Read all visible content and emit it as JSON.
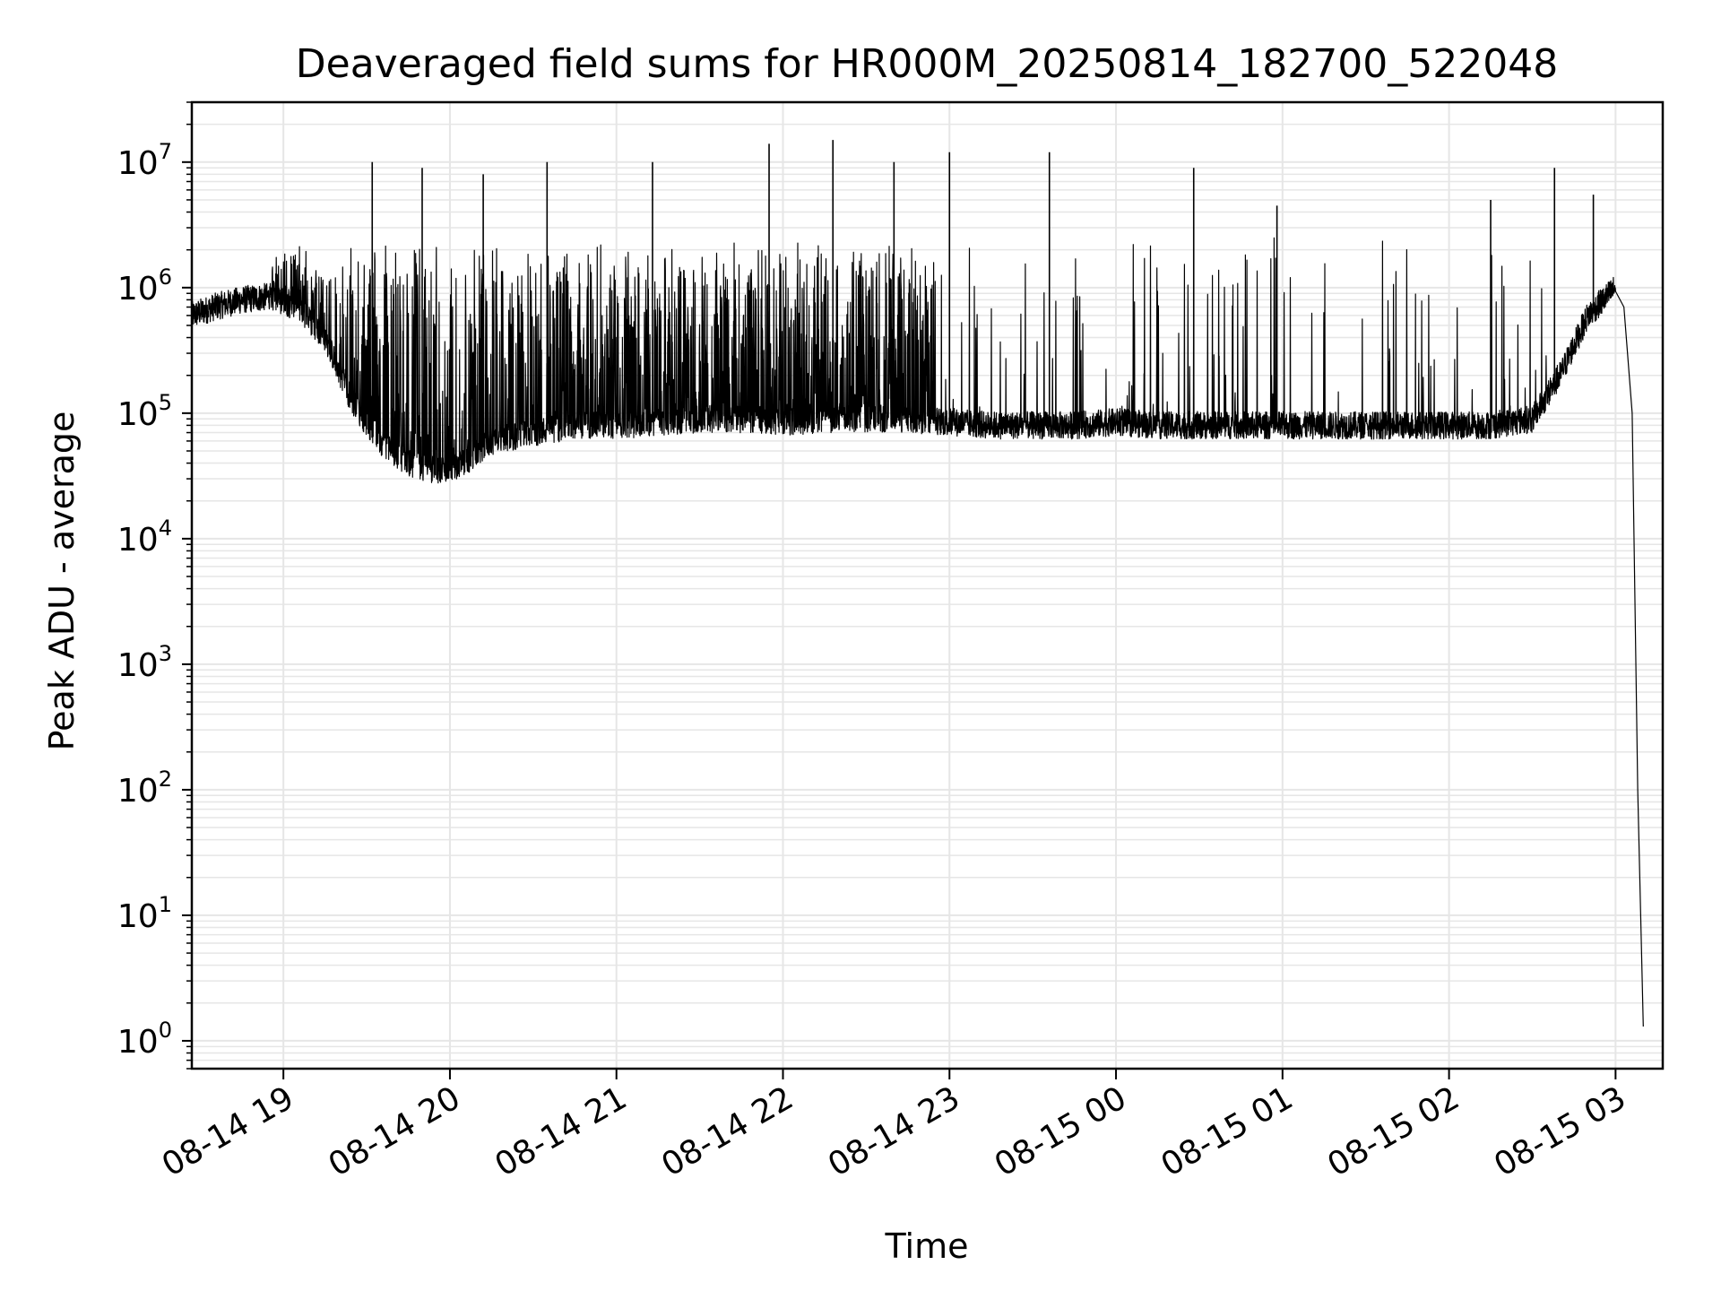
{
  "chart_data": {
    "type": "line",
    "title": "Deaveraged field sums for HR000M_20250814_182700_522048",
    "xlabel": "Time",
    "ylabel": "Peak ADU - average",
    "y_scale": "log",
    "ylim": [
      0.6,
      30000000
    ],
    "xlim": [
      "2025-08-14 18:27",
      "2025-08-15 03:17"
    ],
    "grid": true,
    "line_color": "#000000",
    "x_ticks": [
      {
        "time": "2025-08-14 19:00",
        "label": "08-14 19"
      },
      {
        "time": "2025-08-14 20:00",
        "label": "08-14 20"
      },
      {
        "time": "2025-08-14 21:00",
        "label": "08-14 21"
      },
      {
        "time": "2025-08-14 22:00",
        "label": "08-14 22"
      },
      {
        "time": "2025-08-14 23:00",
        "label": "08-14 23"
      },
      {
        "time": "2025-08-15 00:00",
        "label": "08-15 00"
      },
      {
        "time": "2025-08-15 01:00",
        "label": "08-15 01"
      },
      {
        "time": "2025-08-15 02:00",
        "label": "08-15 02"
      },
      {
        "time": "2025-08-15 03:00",
        "label": "08-15 03"
      }
    ],
    "y_ticks": [
      {
        "value": 1,
        "base": "10",
        "exp": "0"
      },
      {
        "value": 10,
        "base": "10",
        "exp": "1"
      },
      {
        "value": 100,
        "base": "10",
        "exp": "2"
      },
      {
        "value": 1000,
        "base": "10",
        "exp": "3"
      },
      {
        "value": 10000,
        "base": "10",
        "exp": "4"
      },
      {
        "value": 100000,
        "base": "10",
        "exp": "5"
      },
      {
        "value": 1000000,
        "base": "10",
        "exp": "6"
      },
      {
        "value": 10000000,
        "base": "10",
        "exp": "7"
      }
    ],
    "series": [
      {
        "x": [
          "2025-08-14 18:27",
          "2025-08-14 18:35",
          "2025-08-14 18:45",
          "2025-08-14 18:55",
          "2025-08-14 19:05",
          "2025-08-14 19:15",
          "2025-08-14 19:25",
          "2025-08-14 19:35",
          "2025-08-14 19:45",
          "2025-08-14 19:55",
          "2025-08-14 20:05",
          "2025-08-14 20:15",
          "2025-08-14 20:30",
          "2025-08-14 20:45",
          "2025-08-14 21:00",
          "2025-08-14 21:15",
          "2025-08-14 21:30",
          "2025-08-14 21:45",
          "2025-08-14 22:00",
          "2025-08-14 22:15",
          "2025-08-14 22:30",
          "2025-08-14 22:45",
          "2025-08-14 23:00",
          "2025-08-14 23:15",
          "2025-08-14 23:30",
          "2025-08-14 23:45",
          "2025-08-15 00:00",
          "2025-08-15 00:15",
          "2025-08-15 00:30",
          "2025-08-15 00:45",
          "2025-08-15 01:00",
          "2025-08-15 01:15",
          "2025-08-15 01:30",
          "2025-08-15 01:45",
          "2025-08-15 02:00",
          "2025-08-15 02:15",
          "2025-08-15 02:30",
          "2025-08-15 02:40",
          "2025-08-15 02:50",
          "2025-08-15 03:00",
          "2025-08-15 03:03",
          "2025-08-15 03:06",
          "2025-08-15 03:08",
          "2025-08-15 03:10"
        ],
        "y": [
          600000,
          700000,
          800000,
          850000,
          700000,
          400000,
          120000,
          60000,
          40000,
          35000,
          40000,
          60000,
          70000,
          80000,
          80000,
          85000,
          90000,
          90000,
          85000,
          90000,
          90000,
          90000,
          85000,
          80000,
          80000,
          80000,
          85000,
          80000,
          80000,
          80000,
          80000,
          80000,
          80000,
          80000,
          80000,
          80000,
          90000,
          200000,
          600000,
          1000000,
          700000,
          100000,
          100,
          1.3
        ],
        "spikes": [
          {
            "x": "2025-08-14 19:32",
            "y": 10000000
          },
          {
            "x": "2025-08-14 19:50",
            "y": 9000000
          },
          {
            "x": "2025-08-14 20:12",
            "y": 8000000
          },
          {
            "x": "2025-08-14 20:35",
            "y": 10000000
          },
          {
            "x": "2025-08-14 21:13",
            "y": 10000000
          },
          {
            "x": "2025-08-14 21:55",
            "y": 14000000
          },
          {
            "x": "2025-08-14 22:18",
            "y": 15000000
          },
          {
            "x": "2025-08-14 22:40",
            "y": 10000000
          },
          {
            "x": "2025-08-14 23:00",
            "y": 12000000
          },
          {
            "x": "2025-08-14 23:36",
            "y": 12000000
          },
          {
            "x": "2025-08-15 00:28",
            "y": 9000000
          },
          {
            "x": "2025-08-15 00:58",
            "y": 4500000
          },
          {
            "x": "2025-08-15 02:15",
            "y": 5000000
          },
          {
            "x": "2025-08-15 02:38",
            "y": 9000000
          },
          {
            "x": "2025-08-15 02:52",
            "y": 5500000
          }
        ]
      }
    ]
  }
}
